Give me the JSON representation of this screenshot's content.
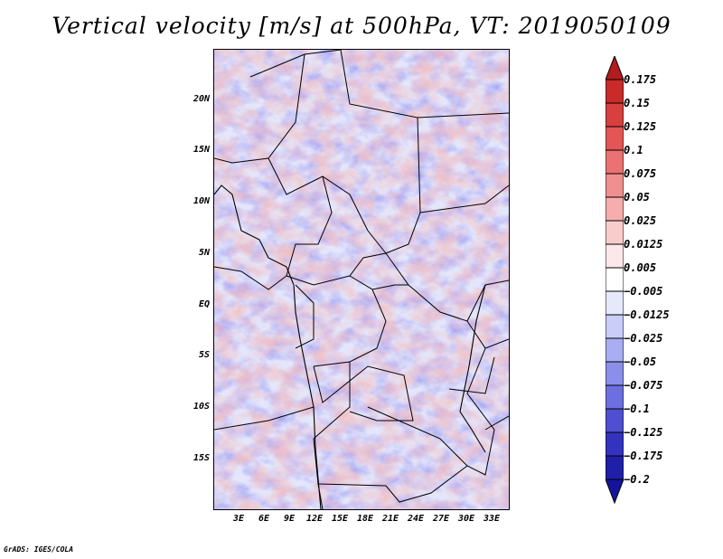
{
  "title": "Vertical velocity [m/s] at 500hPa, VT: 2019050109",
  "credit": "GrADS: IGES/COLA",
  "lat_labels": [
    "20N",
    "15N",
    "10N",
    "5N",
    "EQ",
    "5S",
    "10S",
    "15S"
  ],
  "lon_labels": [
    "3E",
    "6E",
    "9E",
    "12E",
    "15E",
    "18E",
    "21E",
    "24E",
    "27E",
    "30E",
    "33E"
  ],
  "colorbar": {
    "labels": [
      "0.175",
      "0.15",
      "0.125",
      "0.1",
      "0.075",
      "0.05",
      "0.025",
      "0.0125",
      "0.005",
      "−0.005",
      "−0.0125",
      "−0.025",
      "−0.05",
      "−0.075",
      "−0.1",
      "−0.125",
      "−0.175",
      "−0.2"
    ],
    "colors": [
      "#b11c1c",
      "#c92a2a",
      "#d83f3f",
      "#e45656",
      "#ea7272",
      "#f08f8f",
      "#f5adad",
      "#f9cccc",
      "#fce8e8",
      "#ffffff",
      "#e6e8fc",
      "#c9cdf8",
      "#a9aef2",
      "#8b8fea",
      "#6d6fe0",
      "#4f4fd2",
      "#3333c0",
      "#1f1fa8",
      "#14149a"
    ]
  }
}
